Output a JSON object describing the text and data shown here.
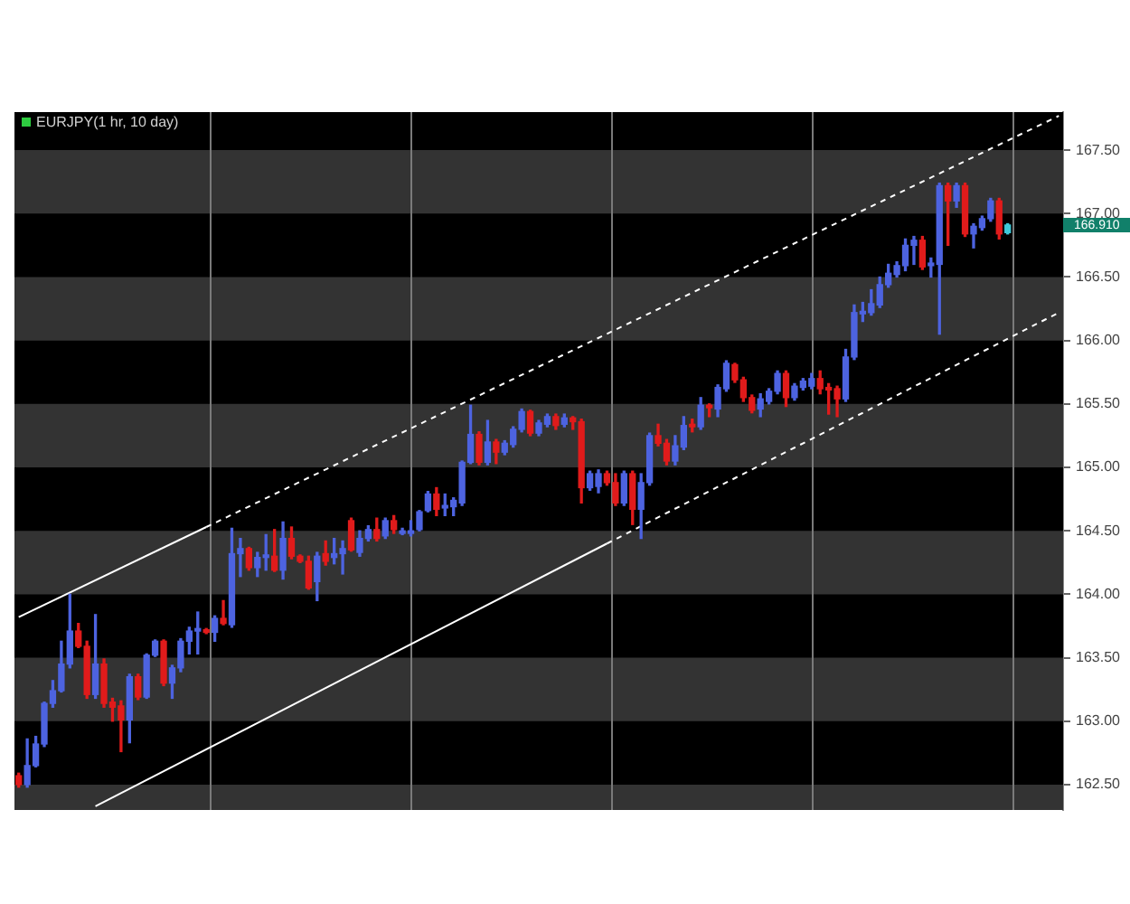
{
  "chart_data": {
    "type": "candlestick",
    "title": "EURJPY(1 hr, 10 day)",
    "categories": [
      null,
      null,
      null,
      null,
      null,
      null,
      null,
      null,
      null,
      null,
      null,
      null,
      null,
      null,
      null,
      null,
      null,
      null,
      null,
      null,
      null,
      null,
      null,
      null,
      null,
      null,
      null,
      null,
      null,
      null,
      null,
      null,
      null,
      null,
      null,
      null,
      null,
      null,
      null,
      null,
      null,
      null,
      null,
      null,
      null,
      null,
      null,
      null,
      null,
      null,
      null,
      null,
      null,
      null,
      null,
      null,
      null,
      null,
      null,
      null,
      null,
      null,
      null,
      null,
      null,
      null,
      null,
      null,
      null,
      null,
      null,
      null,
      null,
      null,
      null,
      null,
      null,
      null,
      null,
      null,
      null,
      null,
      null,
      null,
      null,
      null,
      null,
      null,
      null,
      null,
      null,
      null,
      null,
      null,
      null,
      null,
      null,
      null,
      null,
      null,
      null,
      null,
      null,
      null,
      null,
      null,
      null,
      null,
      null,
      null,
      null,
      null,
      null,
      null,
      null,
      null,
      null,
      null,
      null,
      null,
      null,
      null,
      null
    ],
    "ohlc": [
      [
        162.57,
        162.59,
        162.48,
        162.5
      ],
      [
        162.5,
        162.86,
        162.48,
        162.65
      ],
      [
        162.65,
        162.88,
        162.64,
        162.82
      ],
      [
        162.82,
        163.15,
        162.8,
        163.14
      ],
      [
        163.14,
        163.32,
        163.11,
        163.24
      ],
      [
        163.24,
        163.63,
        163.23,
        163.45
      ],
      [
        163.45,
        164.0,
        163.42,
        163.71
      ],
      [
        163.71,
        163.77,
        163.58,
        163.59
      ],
      [
        163.59,
        163.63,
        163.18,
        163.21
      ],
      [
        163.21,
        163.84,
        163.18,
        163.45
      ],
      [
        163.45,
        163.49,
        163.11,
        163.14
      ],
      [
        163.15,
        163.18,
        163.0,
        163.11
      ],
      [
        163.12,
        163.16,
        162.76,
        163.01
      ],
      [
        163.01,
        163.37,
        162.83,
        163.35
      ],
      [
        163.35,
        163.37,
        163.17,
        163.19
      ],
      [
        163.19,
        163.53,
        163.18,
        163.52
      ],
      [
        163.52,
        163.64,
        163.51,
        163.63
      ],
      [
        163.63,
        163.64,
        163.28,
        163.3
      ],
      [
        163.3,
        163.44,
        163.18,
        163.42
      ],
      [
        163.42,
        163.65,
        163.39,
        163.63
      ],
      [
        163.63,
        163.74,
        163.53,
        163.71
      ],
      [
        163.71,
        163.86,
        163.53,
        163.73
      ],
      [
        163.72,
        163.73,
        163.69,
        163.7
      ],
      [
        163.7,
        163.83,
        163.63,
        163.81
      ],
      [
        163.81,
        163.95,
        163.76,
        163.77
      ],
      [
        163.76,
        164.52,
        163.74,
        164.32
      ],
      [
        164.32,
        164.44,
        164.14,
        164.36
      ],
      [
        164.36,
        164.37,
        164.19,
        164.21
      ],
      [
        164.21,
        164.33,
        164.14,
        164.29
      ],
      [
        164.29,
        164.47,
        164.19,
        164.31
      ],
      [
        164.3,
        164.51,
        164.18,
        164.19
      ],
      [
        164.19,
        164.57,
        164.12,
        164.44
      ],
      [
        164.44,
        164.53,
        164.28,
        164.3
      ],
      [
        164.3,
        164.31,
        164.25,
        164.26
      ],
      [
        164.26,
        164.3,
        164.04,
        164.05
      ],
      [
        164.1,
        164.33,
        163.95,
        164.3
      ],
      [
        164.32,
        164.42,
        164.23,
        164.26
      ],
      [
        164.29,
        164.44,
        164.24,
        164.32
      ],
      [
        164.32,
        164.42,
        164.16,
        164.36
      ],
      [
        164.58,
        164.6,
        164.34,
        164.35
      ],
      [
        164.33,
        164.5,
        164.3,
        164.44
      ],
      [
        164.44,
        164.54,
        164.42,
        164.51
      ],
      [
        164.51,
        164.6,
        164.42,
        164.44
      ],
      [
        164.46,
        164.6,
        164.44,
        164.58
      ],
      [
        164.58,
        164.62,
        164.48,
        164.51
      ],
      [
        164.48,
        164.52,
        164.47,
        164.5
      ],
      [
        164.48,
        164.58,
        164.46,
        164.5
      ],
      [
        164.51,
        164.66,
        164.5,
        164.65
      ],
      [
        164.66,
        164.81,
        164.65,
        164.79
      ],
      [
        164.79,
        164.84,
        164.62,
        164.67
      ],
      [
        164.68,
        164.79,
        164.62,
        164.7
      ],
      [
        164.69,
        164.76,
        164.62,
        164.74
      ],
      [
        164.72,
        165.05,
        164.7,
        165.04
      ],
      [
        165.04,
        165.49,
        165.03,
        165.26
      ],
      [
        165.26,
        165.28,
        165.02,
        165.04
      ],
      [
        165.04,
        165.37,
        165.02,
        165.2
      ],
      [
        165.2,
        165.22,
        165.03,
        165.12
      ],
      [
        165.12,
        165.21,
        165.1,
        165.19
      ],
      [
        165.18,
        165.32,
        165.16,
        165.3
      ],
      [
        165.3,
        165.46,
        165.28,
        165.44
      ],
      [
        165.44,
        165.45,
        165.25,
        165.27
      ],
      [
        165.27,
        165.37,
        165.25,
        165.35
      ],
      [
        165.34,
        165.42,
        165.32,
        165.4
      ],
      [
        165.4,
        165.42,
        165.3,
        165.33
      ],
      [
        165.34,
        165.42,
        165.32,
        165.39
      ],
      [
        165.39,
        165.4,
        165.3,
        165.36
      ],
      [
        165.36,
        165.38,
        164.72,
        164.84
      ],
      [
        164.84,
        164.97,
        164.82,
        164.95
      ],
      [
        164.85,
        164.98,
        164.8,
        164.95
      ],
      [
        164.95,
        164.97,
        164.86,
        164.88
      ],
      [
        164.88,
        164.95,
        164.7,
        164.72
      ],
      [
        164.72,
        164.97,
        164.7,
        164.95
      ],
      [
        164.95,
        164.97,
        164.55,
        164.67
      ],
      [
        164.67,
        164.95,
        164.44,
        164.88
      ],
      [
        164.88,
        165.27,
        164.86,
        165.25
      ],
      [
        165.25,
        165.34,
        165.17,
        165.19
      ],
      [
        165.19,
        165.22,
        165.02,
        165.05
      ],
      [
        165.05,
        165.25,
        165.02,
        165.17
      ],
      [
        165.16,
        165.4,
        165.14,
        165.33
      ],
      [
        165.34,
        165.38,
        165.28,
        165.32
      ],
      [
        165.32,
        165.55,
        165.3,
        165.49
      ],
      [
        165.49,
        165.5,
        165.4,
        165.47
      ],
      [
        165.46,
        165.65,
        165.4,
        165.63
      ],
      [
        165.62,
        165.84,
        165.6,
        165.82
      ],
      [
        165.81,
        165.82,
        165.67,
        165.69
      ],
      [
        165.69,
        165.71,
        165.52,
        165.55
      ],
      [
        165.55,
        165.57,
        165.43,
        165.45
      ],
      [
        165.46,
        165.58,
        165.4,
        165.54
      ],
      [
        165.52,
        165.62,
        165.5,
        165.6
      ],
      [
        165.6,
        165.76,
        165.58,
        165.74
      ],
      [
        165.74,
        165.76,
        165.48,
        165.55
      ],
      [
        165.55,
        165.66,
        165.53,
        165.64
      ],
      [
        165.63,
        165.7,
        165.61,
        165.68
      ],
      [
        165.64,
        165.74,
        165.62,
        165.7
      ],
      [
        165.7,
        165.76,
        165.58,
        165.62
      ],
      [
        165.63,
        165.66,
        165.42,
        165.61
      ],
      [
        165.62,
        165.64,
        165.4,
        165.54
      ],
      [
        165.54,
        165.93,
        165.52,
        165.87
      ],
      [
        165.87,
        166.28,
        165.85,
        166.22
      ],
      [
        166.21,
        166.3,
        166.15,
        166.23
      ],
      [
        166.22,
        166.4,
        166.2,
        166.29
      ],
      [
        166.28,
        166.5,
        166.26,
        166.44
      ],
      [
        166.44,
        166.6,
        166.42,
        166.53
      ],
      [
        166.52,
        166.62,
        166.5,
        166.59
      ],
      [
        166.59,
        166.8,
        166.55,
        166.75
      ],
      [
        166.75,
        166.82,
        166.6,
        166.79
      ],
      [
        166.79,
        166.82,
        166.56,
        166.58
      ],
      [
        166.59,
        166.65,
        166.5,
        166.61
      ],
      [
        166.6,
        167.24,
        166.05,
        167.22
      ],
      [
        167.22,
        167.24,
        166.75,
        167.1
      ],
      [
        167.1,
        167.24,
        167.05,
        167.22
      ],
      [
        167.22,
        167.24,
        166.82,
        166.84
      ],
      [
        166.84,
        166.92,
        166.73,
        166.9
      ],
      [
        166.89,
        166.98,
        166.87,
        166.96
      ],
      [
        166.96,
        167.12,
        166.94,
        167.1
      ],
      [
        167.1,
        167.12,
        166.8,
        166.84
      ],
      [
        166.85,
        166.92,
        166.84,
        166.91
      ],
      null,
      null,
      null,
      null,
      null,
      null
    ],
    "colors": [
      "#e01b1b",
      "#4d63e0",
      "#4d63e0",
      "#4d63e0",
      "#4d63e0",
      "#4d63e0",
      "#4d63e0",
      "#e01b1b",
      "#e01b1b",
      "#4d63e0",
      "#e01b1b",
      "#e01b1b",
      "#e01b1b",
      "#4d63e0",
      "#e01b1b",
      "#4d63e0",
      "#4d63e0",
      "#e01b1b",
      "#4d63e0",
      "#4d63e0",
      "#4d63e0",
      "#4d63e0",
      "#e01b1b",
      "#4d63e0",
      "#e01b1b",
      "#4d63e0",
      "#4d63e0",
      "#e01b1b",
      "#4d63e0",
      "#4d63e0",
      "#e01b1b",
      "#4d63e0",
      "#e01b1b",
      "#e01b1b",
      "#e01b1b",
      "#4d63e0",
      "#e01b1b",
      "#4d63e0",
      "#4d63e0",
      "#e01b1b",
      "#4d63e0",
      "#4d63e0",
      "#e01b1b",
      "#4d63e0",
      "#e01b1b",
      "#4d63e0",
      "#4d63e0",
      "#4d63e0",
      "#4d63e0",
      "#e01b1b",
      "#4d63e0",
      "#4d63e0",
      "#4d63e0",
      "#4d63e0",
      "#e01b1b",
      "#4d63e0",
      "#e01b1b",
      "#4d63e0",
      "#4d63e0",
      "#4d63e0",
      "#e01b1b",
      "#4d63e0",
      "#4d63e0",
      "#e01b1b",
      "#4d63e0",
      "#e01b1b",
      "#e01b1b",
      "#4d63e0",
      "#4d63e0",
      "#e01b1b",
      "#e01b1b",
      "#4d63e0",
      "#e01b1b",
      "#4d63e0",
      "#4d63e0",
      "#e01b1b",
      "#e01b1b",
      "#4d63e0",
      "#4d63e0",
      "#e01b1b",
      "#4d63e0",
      "#e01b1b",
      "#4d63e0",
      "#4d63e0",
      "#e01b1b",
      "#e01b1b",
      "#e01b1b",
      "#4d63e0",
      "#4d63e0",
      "#4d63e0",
      "#e01b1b",
      "#4d63e0",
      "#4d63e0",
      "#4d63e0",
      "#e01b1b",
      "#e01b1b",
      "#e01b1b",
      "#4d63e0",
      "#4d63e0",
      "#4d63e0",
      "#4d63e0",
      "#4d63e0",
      "#4d63e0",
      "#4d63e0",
      "#4d63e0",
      "#4d63e0",
      "#e01b1b",
      "#4d63e0",
      "#4d63e0",
      "#e01b1b",
      "#4d63e0",
      "#e01b1b",
      "#4d63e0",
      "#4d63e0",
      "#4d63e0",
      "#e01b1b",
      "#3fc9d9",
      null,
      null,
      null,
      null,
      null,
      null
    ],
    "series": [
      {
        "type": "line",
        "color": "#ffffff",
        "line_style": "solid",
        "values": [
          163.82,
          null,
          null,
          null,
          null,
          null,
          null,
          null,
          null,
          null,
          null,
          null,
          null,
          null,
          null,
          null,
          null,
          null,
          null,
          null,
          null,
          null,
          164.53,
          null,
          null,
          null,
          null,
          null,
          null,
          null,
          null,
          null,
          null,
          null,
          null,
          null,
          null,
          null,
          null,
          null,
          null,
          null,
          null,
          null,
          null,
          null,
          null,
          null,
          null,
          null,
          null,
          null,
          null,
          null,
          null,
          null,
          null,
          null,
          null,
          null,
          null,
          null,
          null,
          null,
          null,
          null,
          null,
          null,
          null,
          null,
          null,
          null,
          null,
          null,
          null,
          null,
          null,
          null,
          null,
          null,
          null,
          null,
          null,
          null,
          null,
          null,
          null,
          null,
          null,
          null,
          null,
          null,
          null,
          null,
          null,
          null,
          null,
          null,
          null,
          null,
          null,
          null,
          null,
          null,
          null,
          null,
          null,
          null,
          null,
          null,
          null,
          null,
          null,
          null,
          null,
          null,
          null,
          null,
          null,
          null,
          null,
          null,
          null
        ]
      },
      {
        "type": "line",
        "color": "#ffffff",
        "line_style": "dashed",
        "values": [
          null,
          null,
          null,
          null,
          null,
          null,
          null,
          null,
          null,
          null,
          null,
          null,
          null,
          null,
          null,
          null,
          null,
          null,
          null,
          null,
          null,
          null,
          164.53,
          null,
          null,
          null,
          null,
          null,
          null,
          null,
          null,
          null,
          null,
          null,
          null,
          null,
          null,
          null,
          null,
          null,
          null,
          null,
          null,
          null,
          null,
          null,
          null,
          null,
          null,
          null,
          null,
          null,
          null,
          null,
          null,
          null,
          null,
          null,
          null,
          null,
          null,
          null,
          null,
          null,
          null,
          null,
          null,
          null,
          null,
          null,
          null,
          null,
          null,
          null,
          null,
          null,
          null,
          null,
          null,
          null,
          null,
          null,
          null,
          null,
          null,
          null,
          null,
          null,
          null,
          null,
          null,
          null,
          null,
          null,
          null,
          null,
          null,
          null,
          null,
          null,
          null,
          null,
          null,
          null,
          null,
          null,
          null,
          null,
          null,
          null,
          null,
          null,
          null,
          null,
          null,
          null,
          null,
          null,
          null,
          null,
          null,
          null,
          167.77
        ]
      },
      {
        "type": "line",
        "color": "#ffffff",
        "line_style": "solid",
        "values": [
          null,
          null,
          null,
          null,
          null,
          null,
          null,
          null,
          null,
          162.33,
          null,
          null,
          null,
          null,
          null,
          null,
          null,
          null,
          null,
          null,
          null,
          null,
          null,
          null,
          null,
          null,
          null,
          null,
          null,
          null,
          null,
          null,
          null,
          null,
          null,
          null,
          null,
          null,
          null,
          null,
          null,
          null,
          null,
          null,
          null,
          null,
          null,
          null,
          null,
          null,
          null,
          null,
          null,
          null,
          null,
          null,
          null,
          null,
          null,
          null,
          null,
          null,
          null,
          null,
          null,
          null,
          null,
          null,
          null,
          164.4,
          null,
          null,
          null,
          null,
          null,
          null,
          null,
          null,
          null,
          null,
          null,
          null,
          null,
          null,
          null,
          null,
          null,
          null,
          null,
          null,
          null,
          null,
          null,
          null,
          null,
          null,
          null,
          null,
          null,
          null,
          null,
          null,
          null,
          null,
          null,
          null,
          null,
          null,
          null,
          null,
          null,
          null,
          null,
          null,
          null,
          null,
          null,
          null,
          null,
          null,
          null,
          null,
          null
        ]
      },
      {
        "type": "line",
        "color": "#ffffff",
        "line_style": "dashed",
        "values": [
          null,
          null,
          null,
          null,
          null,
          null,
          null,
          null,
          null,
          null,
          null,
          null,
          null,
          null,
          null,
          null,
          null,
          null,
          null,
          null,
          null,
          null,
          null,
          null,
          null,
          null,
          null,
          null,
          null,
          null,
          null,
          null,
          null,
          null,
          null,
          null,
          null,
          null,
          null,
          null,
          null,
          null,
          null,
          null,
          null,
          null,
          null,
          null,
          null,
          null,
          null,
          null,
          null,
          null,
          null,
          null,
          null,
          null,
          null,
          null,
          null,
          null,
          null,
          null,
          null,
          null,
          null,
          null,
          null,
          164.4,
          null,
          null,
          null,
          null,
          null,
          null,
          null,
          null,
          null,
          null,
          null,
          null,
          null,
          null,
          null,
          null,
          null,
          null,
          null,
          null,
          null,
          null,
          null,
          null,
          null,
          null,
          null,
          null,
          null,
          null,
          null,
          null,
          null,
          null,
          null,
          null,
          null,
          null,
          null,
          null,
          null,
          null,
          null,
          null,
          null,
          null,
          null,
          null,
          null,
          null,
          null,
          null,
          166.22
        ]
      }
    ],
    "ylim": [
      162.3,
      167.8
    ],
    "yticks": [
      {
        "value": 162.5,
        "label": "162.50"
      },
      {
        "value": 163,
        "label": "163.00"
      },
      {
        "value": 163.5,
        "label": "163.50"
      },
      {
        "value": 164,
        "label": "164.00"
      },
      {
        "value": 164.5,
        "label": "164.50"
      },
      {
        "value": 165,
        "label": "165.00"
      },
      {
        "value": 165.5,
        "label": "165.50"
      },
      {
        "value": 166,
        "label": "166.00"
      },
      {
        "value": 166.5,
        "label": "166.50"
      },
      {
        "value": 167,
        "label": "167.00"
      },
      {
        "value": 167.5,
        "label": "167.50"
      }
    ],
    "grid": true,
    "annotations": [
      "166.910"
    ]
  }
}
